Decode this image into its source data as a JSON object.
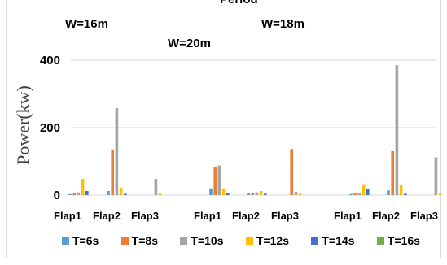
{
  "chart_data": {
    "type": "bar",
    "title": "Period",
    "ylabel": "Power(kw)",
    "ylim": [
      0,
      400
    ],
    "yticks": [
      "0",
      "200",
      "400"
    ],
    "group_labels": [
      "W=16m",
      "W=20m",
      "W=18m"
    ],
    "groups": [
      {
        "label": "W=16m",
        "categories": [
          "Flap1",
          "Flap2",
          "Flap3"
        ]
      },
      {
        "label": "W=20m",
        "categories": [
          "Flap1",
          "Flap2",
          "Flap3"
        ]
      },
      {
        "label": "W=18m",
        "categories": [
          "Flap1",
          "Flap2",
          "Flap3"
        ]
      }
    ],
    "series": [
      {
        "name": "T=6s",
        "color": "#5B9BD5",
        "values": [
          3,
          12,
          0,
          20,
          5,
          0,
          3,
          14,
          0
        ]
      },
      {
        "name": "T=8s",
        "color": "#ED7D31",
        "values": [
          6,
          134,
          0,
          83,
          7,
          137,
          7,
          130,
          0
        ]
      },
      {
        "name": "T=10s",
        "color": "#A5A5A5",
        "values": [
          8,
          258,
          48,
          88,
          8,
          10,
          7,
          385,
          112
        ]
      },
      {
        "name": "T=12s",
        "color": "#FFC000",
        "values": [
          48,
          22,
          4,
          20,
          12,
          4,
          32,
          30,
          4
        ]
      },
      {
        "name": "T=14s",
        "color": "#4472C4",
        "values": [
          12,
          4,
          0,
          5,
          4,
          0,
          17,
          4,
          0
        ]
      },
      {
        "name": "T=16s",
        "color": "#70AD47",
        "values": [
          0,
          0,
          0,
          0,
          0,
          0,
          0,
          0,
          0
        ]
      }
    ]
  }
}
